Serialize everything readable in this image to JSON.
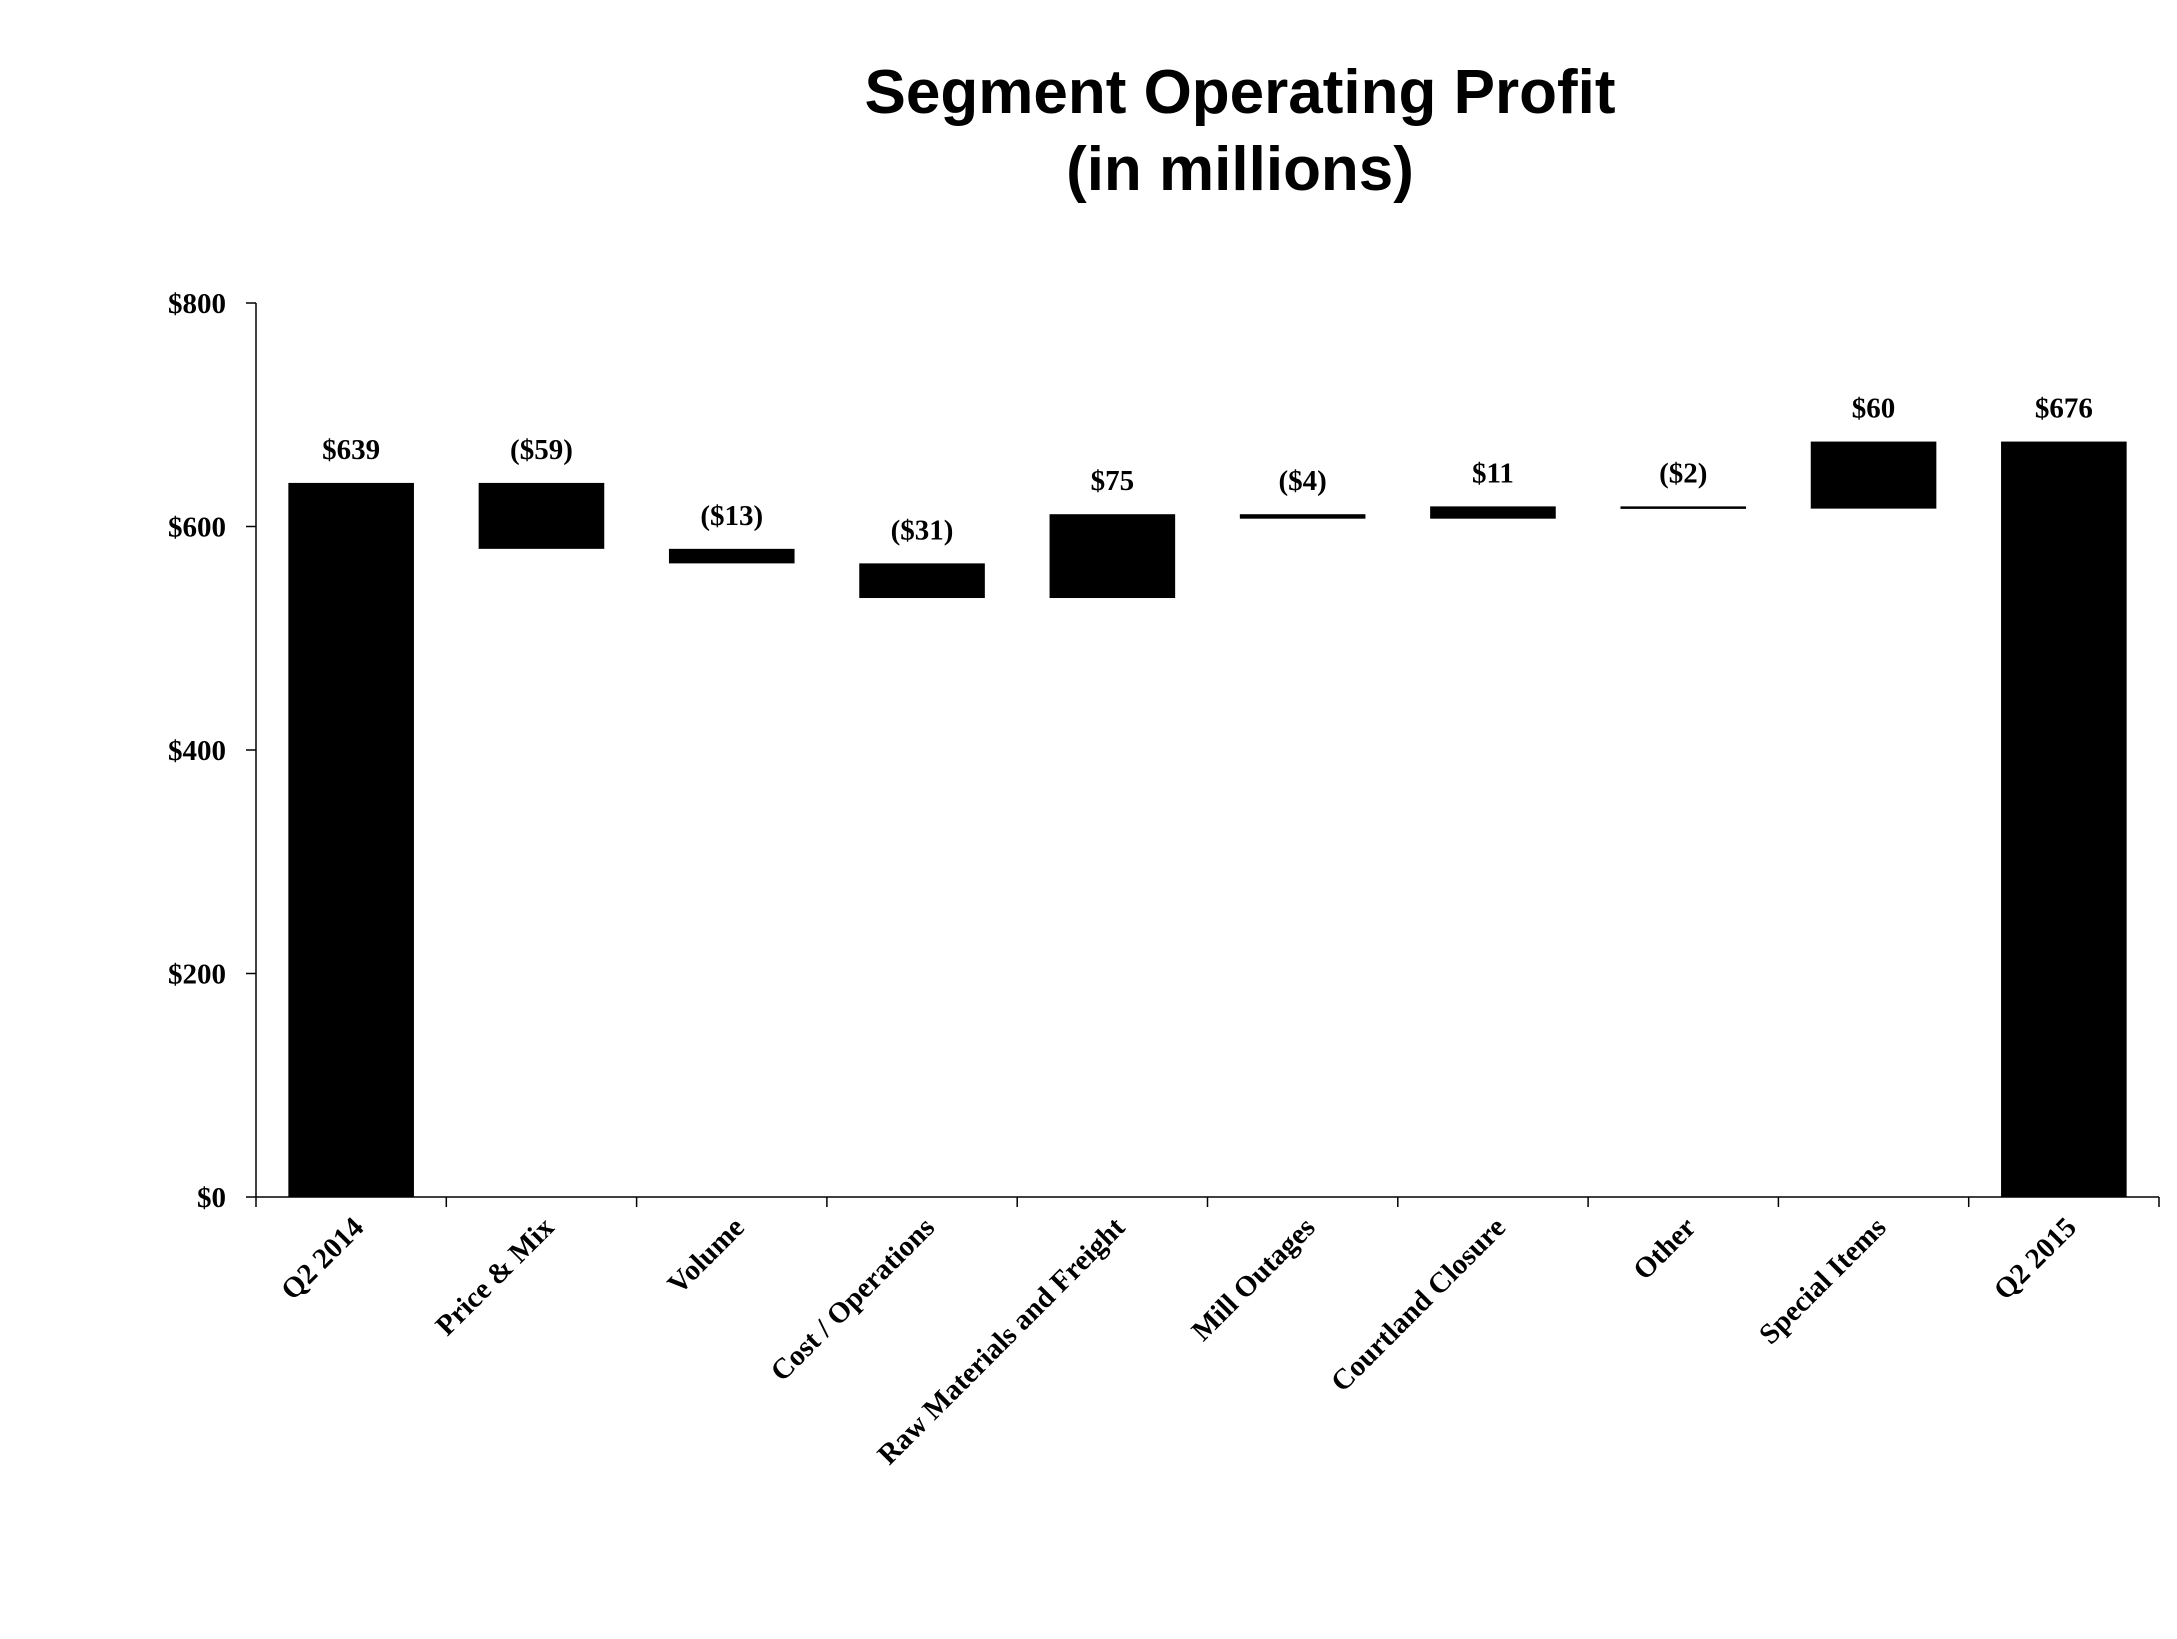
{
  "chart_data": {
    "type": "waterfall",
    "title": [
      "Segment Operating Profit",
      "(in millions)"
    ],
    "categories": [
      "Q2 2014",
      "Price & Mix",
      "Volume",
      "Cost / Operations",
      "Raw Materials and Freight",
      "Mill Outages",
      "Courtland Closure",
      "Other",
      "Special Items",
      "Q2 2015"
    ],
    "values": [
      639,
      -59,
      -13,
      -31,
      75,
      -4,
      11,
      -2,
      60,
      676
    ],
    "value_labels": [
      "$639",
      "($59)",
      "($13)",
      "($31)",
      "$75",
      "($4)",
      "$11",
      "($2)",
      "$60",
      "$676"
    ],
    "totals": [
      true,
      false,
      false,
      false,
      false,
      false,
      false,
      false,
      false,
      true
    ],
    "ylim": [
      0,
      800
    ],
    "yticks": [
      0,
      200,
      400,
      600,
      800
    ],
    "ytick_labels": [
      "$0",
      "$200",
      "$400",
      "$600",
      "$800"
    ],
    "grid": false,
    "bar_color": "#000000"
  }
}
